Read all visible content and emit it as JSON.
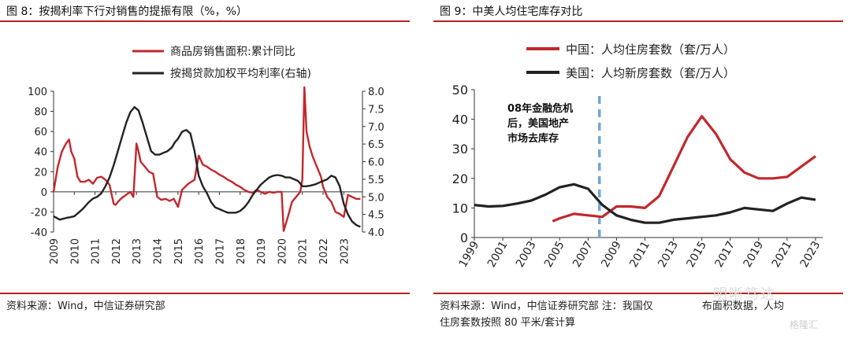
{
  "left": {
    "title": "图 8：按揭利率下行对销售的提振有限（%，%）",
    "source": "资料来源：Wind，中信证券研究部"
  },
  "right": {
    "title": "图 9：中美人均住宅库存对比",
    "annotation": [
      "08年金融危机",
      "后，美国地产",
      "市场去库存"
    ],
    "source_line1": "资料来源：Wind，中信证券研究部  注：我国仅",
    "source_line1b": "布面积数据，人均",
    "source_line2": "住房套数按照 80 平米/套计算"
  },
  "watermark": "明晰笃达",
  "watermark2": "格隆汇",
  "colors": {
    "red": "#c0282d",
    "black": "#222222",
    "dash": "#6fa8d6",
    "rule": "#b22222"
  },
  "chart_data": [
    {
      "type": "line",
      "title": "",
      "x_ticks": [
        "2009",
        "2010",
        "2011",
        "2012",
        "2013",
        "2014",
        "2015",
        "2016",
        "2017",
        "2018",
        "2019",
        "2020",
        "2021",
        "2022",
        "2023"
      ],
      "xlim": [
        2009,
        2023.9
      ],
      "ylim_left": [
        -40,
        100
      ],
      "yticks_left": [
        100,
        80,
        60,
        40,
        20,
        0,
        -20,
        -40
      ],
      "ylim_right": [
        4.0,
        8.0
      ],
      "yticks_right": [
        "8.0",
        "7.5",
        "7.0",
        "6.5",
        "6.0",
        "5.5",
        "5.0",
        "4.5",
        "4.0"
      ],
      "series": [
        {
          "name": "商品房销售面积:累计同比",
          "axis": "left",
          "color": "#c0282d",
          "x": [
            2009.0,
            2009.2,
            2009.4,
            2009.6,
            2009.75,
            2009.85,
            2010.0,
            2010.15,
            2010.3,
            2010.5,
            2010.7,
            2010.9,
            2011.1,
            2011.3,
            2011.5,
            2011.7,
            2011.9,
            2012.0,
            2012.1,
            2012.3,
            2012.5,
            2012.7,
            2012.85,
            2013.0,
            2013.1,
            2013.2,
            2013.4,
            2013.6,
            2013.8,
            2014.0,
            2014.2,
            2014.4,
            2014.6,
            2014.8,
            2015.0,
            2015.2,
            2015.5,
            2015.8,
            2016.0,
            2016.2,
            2016.4,
            2016.6,
            2016.8,
            2017.0,
            2017.2,
            2017.4,
            2017.6,
            2017.8,
            2018.0,
            2018.2,
            2018.4,
            2018.6,
            2018.8,
            2019.0,
            2019.2,
            2019.4,
            2019.6,
            2019.8,
            2020.0,
            2020.1,
            2020.3,
            2020.5,
            2020.7,
            2020.9,
            2021.0,
            2021.1,
            2021.2,
            2021.35,
            2021.5,
            2021.7,
            2021.9,
            2022.0,
            2022.2,
            2022.4,
            2022.6,
            2022.8,
            2023.0,
            2023.2,
            2023.4,
            2023.6,
            2023.8
          ],
          "values": [
            0,
            25,
            40,
            48,
            52,
            40,
            33,
            15,
            10,
            10,
            12,
            8,
            14,
            15,
            12,
            7,
            -12,
            -13,
            -10,
            -6,
            -3,
            0,
            -5,
            48,
            40,
            30,
            25,
            20,
            18,
            -5,
            -8,
            -7,
            -9,
            -7,
            -15,
            2,
            8,
            12,
            36,
            27,
            25,
            22,
            20,
            17,
            15,
            12,
            10,
            7,
            5,
            2,
            0,
            -1,
            2,
            0,
            -2,
            0,
            -1,
            0,
            0,
            -39,
            -25,
            -10,
            -5,
            0,
            12,
            104,
            60,
            45,
            35,
            25,
            15,
            5,
            -5,
            -10,
            -20,
            -22,
            -25,
            -3,
            -5,
            -7,
            -7
          ]
        },
        {
          "name": "按揭贷款加权平均利率(右轴)",
          "axis": "right",
          "color": "#222222",
          "x": [
            2009.0,
            2009.3,
            2009.6,
            2009.8,
            2010.0,
            2010.2,
            2010.4,
            2010.7,
            2010.9,
            2011.1,
            2011.3,
            2011.5,
            2011.7,
            2011.9,
            2012.1,
            2012.3,
            2012.5,
            2012.7,
            2012.9,
            2013.1,
            2013.3,
            2013.5,
            2013.7,
            2013.9,
            2014.1,
            2014.3,
            2014.5,
            2014.7,
            2014.85,
            2015.0,
            2015.2,
            2015.4,
            2015.6,
            2015.8,
            2016.0,
            2016.2,
            2016.4,
            2016.6,
            2016.8,
            2017.0,
            2017.2,
            2017.4,
            2017.6,
            2017.8,
            2018.0,
            2018.2,
            2018.4,
            2018.6,
            2018.8,
            2019.0,
            2019.2,
            2019.4,
            2019.6,
            2019.8,
            2020.0,
            2020.2,
            2020.4,
            2020.6,
            2020.8,
            2021.0,
            2021.2,
            2021.4,
            2021.6,
            2021.8,
            2022.0,
            2022.2,
            2022.4,
            2022.6,
            2022.8,
            2023.0,
            2023.2,
            2023.4,
            2023.6,
            2023.8
          ],
          "values": [
            4.45,
            4.35,
            4.4,
            4.42,
            4.45,
            4.55,
            4.65,
            4.85,
            4.95,
            5.0,
            5.1,
            5.3,
            5.55,
            5.9,
            6.3,
            6.7,
            7.1,
            7.4,
            7.55,
            7.45,
            7.1,
            6.7,
            6.3,
            6.2,
            6.2,
            6.25,
            6.3,
            6.4,
            6.55,
            6.65,
            6.85,
            6.9,
            6.8,
            6.3,
            5.6,
            5.3,
            5.1,
            4.85,
            4.7,
            4.65,
            4.6,
            4.55,
            4.55,
            4.55,
            4.6,
            4.7,
            4.85,
            5.05,
            5.2,
            5.35,
            5.45,
            5.55,
            5.6,
            5.62,
            5.6,
            5.55,
            5.55,
            5.5,
            5.45,
            5.3,
            5.3,
            5.32,
            5.35,
            5.4,
            5.45,
            5.5,
            5.6,
            5.55,
            5.3,
            4.8,
            4.5,
            4.3,
            4.2,
            4.15
          ]
        }
      ]
    },
    {
      "type": "line",
      "title": "",
      "x_ticks": [
        "1999",
        "2001",
        "2003",
        "2005",
        "2007",
        "2009",
        "2011",
        "2013",
        "2015",
        "2017",
        "2019",
        "2021",
        "2023"
      ],
      "xlim": [
        1999,
        2023.5
      ],
      "ylim": [
        0,
        50
      ],
      "yticks": [
        50,
        40,
        30,
        20,
        10,
        0
      ],
      "vertical_line_x": 2007.8,
      "series": [
        {
          "name": "中国：人均住房套数（套/万人）",
          "color": "#c0282d",
          "x": [
            2004.5,
            2005,
            2006,
            2007,
            2008,
            2009,
            2010,
            2011,
            2012,
            2013,
            2014,
            2015,
            2016,
            2017,
            2018,
            2019,
            2020,
            2021,
            2022,
            2023
          ],
          "values": [
            5.5,
            6.5,
            8,
            7.5,
            7,
            10.5,
            10.5,
            10,
            14,
            24,
            34,
            41,
            35,
            26.5,
            22,
            20,
            20,
            20.5,
            24,
            27.5
          ]
        },
        {
          "name": "美国：人均新房套数（套/万人）",
          "color": "#222222",
          "x": [
            1999,
            2000,
            2001,
            2002,
            2003,
            2004,
            2005,
            2006,
            2007,
            2008,
            2009,
            2010,
            2011,
            2012,
            2013,
            2014,
            2015,
            2016,
            2017,
            2018,
            2019,
            2020,
            2021,
            2022,
            2023
          ],
          "values": [
            11,
            10.5,
            10.7,
            11.5,
            12.5,
            14.5,
            17,
            18,
            16.5,
            11,
            7.5,
            6,
            5,
            5,
            6,
            6.5,
            7,
            7.5,
            8.5,
            10,
            9.5,
            9,
            11.5,
            13.5,
            12.8
          ]
        }
      ]
    }
  ]
}
